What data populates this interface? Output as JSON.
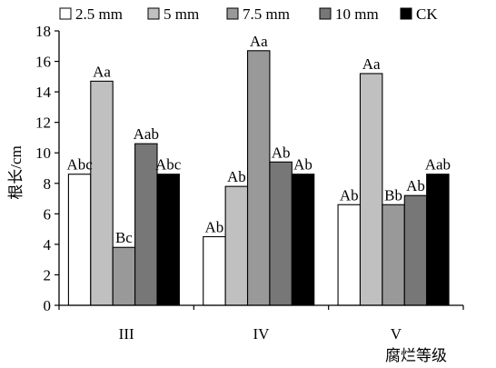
{
  "chart_data": {
    "type": "bar",
    "categories": [
      "III",
      "IV",
      "V"
    ],
    "series": [
      {
        "name": "2.5 mm",
        "color": "#ffffff",
        "values": [
          8.6,
          4.5,
          6.6
        ],
        "labels": [
          "Abc",
          "Ab",
          "Ab"
        ]
      },
      {
        "name": "5 mm",
        "color": "#c0c0c0",
        "values": [
          14.7,
          7.8,
          15.2
        ],
        "labels": [
          "Aa",
          "Ab",
          "Aa"
        ]
      },
      {
        "name": "7.5 mm",
        "color": "#999999",
        "values": [
          3.8,
          16.7,
          6.6
        ],
        "labels": [
          "Bc",
          "Aa",
          "Bb"
        ]
      },
      {
        "name": "10 mm",
        "color": "#777777",
        "values": [
          10.6,
          9.4,
          7.2
        ],
        "labels": [
          "Aab",
          "Ab",
          "Ab"
        ]
      },
      {
        "name": "CK",
        "color": "#000000",
        "values": [
          8.6,
          8.6,
          8.6
        ],
        "labels": [
          "Abc",
          "Ab",
          "Aab"
        ]
      }
    ],
    "ylabel": "根长/cm",
    "xlabel": "腐烂等级",
    "ylim": [
      0,
      18
    ],
    "yticks": [
      0,
      2,
      4,
      6,
      8,
      10,
      12,
      14,
      16,
      18
    ],
    "grid": false,
    "legend_position": "top"
  }
}
